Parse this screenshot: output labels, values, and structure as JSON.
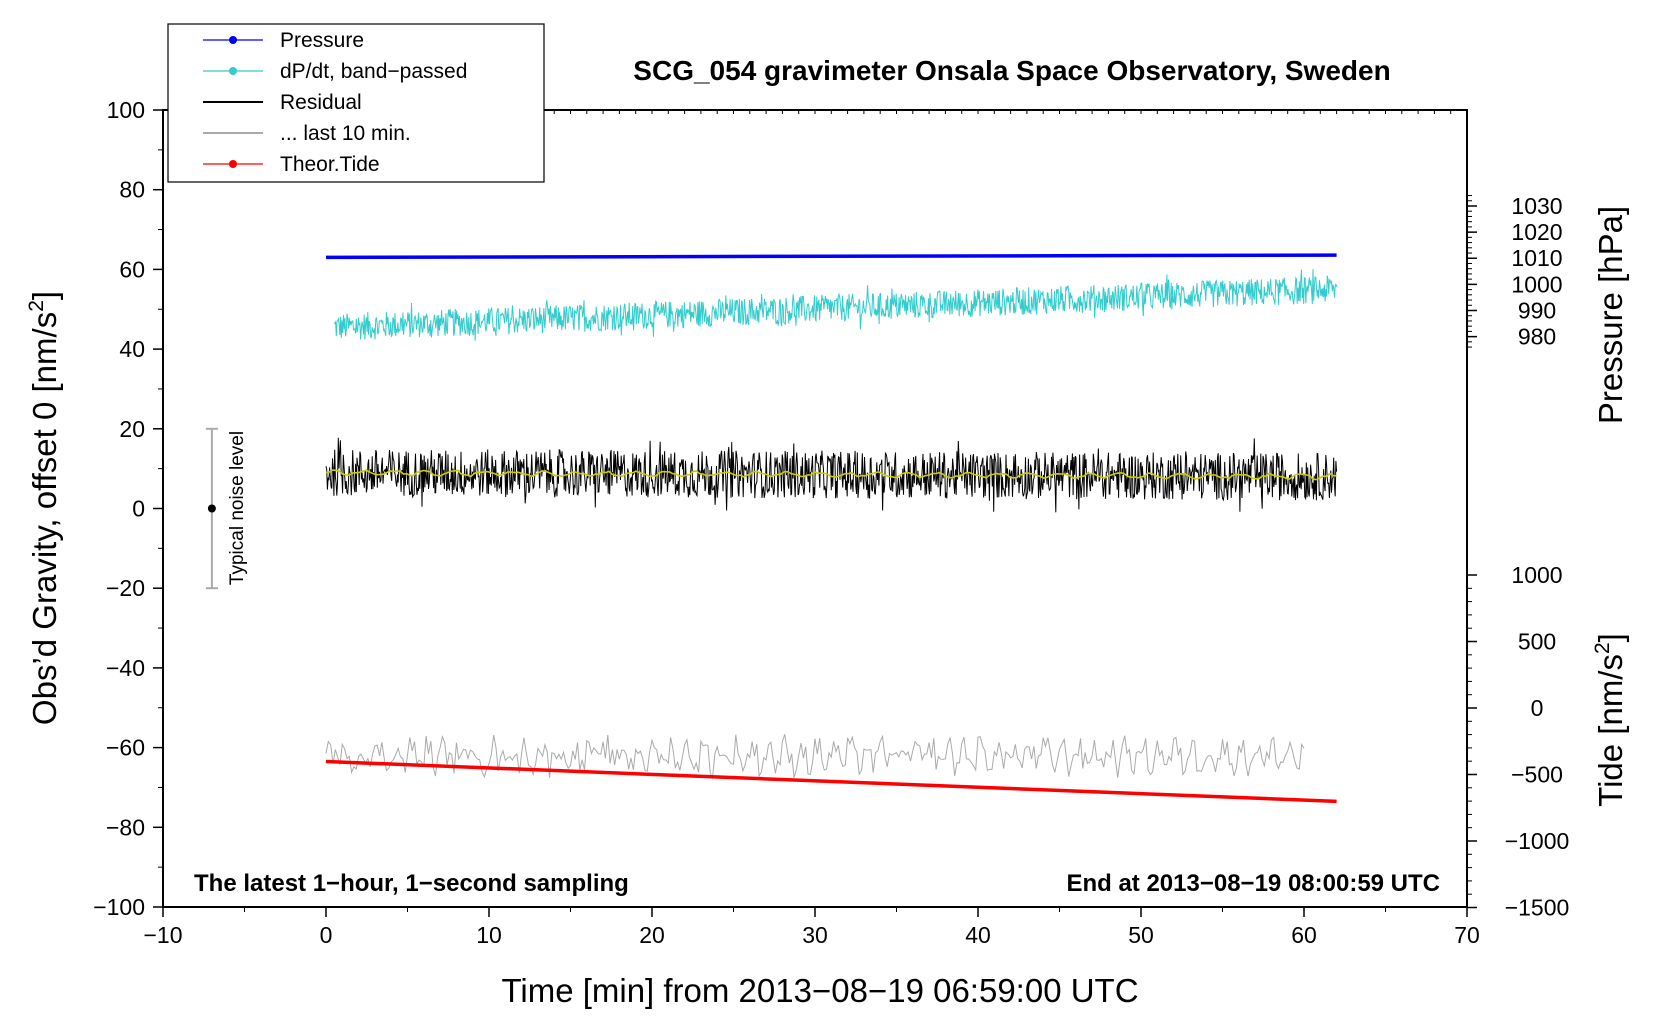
{
  "chart_data": {
    "type": "line",
    "title": "SCG_054 gravimeter Onsala Space Observatory, Sweden",
    "xlabel": "Time [min] from 2013−08−19 06:59:00 UTC",
    "ylabel_left": "Obs’d Gravity, offset 0 [nm/s",
    "ylabel_left_sup": "2",
    "ylabel_left_end": "]",
    "ylabel_right_pressure": "Pressure [hPa]",
    "ylabel_right_tide": "Tide [nm/s",
    "ylabel_right_tide_sup": "2",
    "ylabel_right_tide_end": "]",
    "xlim": [
      -10,
      70
    ],
    "ylim": [
      -100,
      100
    ],
    "x_ticks": [
      "−10",
      "0",
      "10",
      "20",
      "30",
      "40",
      "50",
      "60",
      "70"
    ],
    "y_ticks": [
      "−100",
      "−80",
      "−60",
      "−40",
      "−20",
      "0",
      "20",
      "40",
      "60",
      "80",
      "100"
    ],
    "pressure_axis": {
      "range": [
        975,
        1035
      ],
      "ticks": [
        "980",
        "990",
        "1000",
        "1010",
        "1020",
        "1030"
      ]
    },
    "tide_axis": {
      "range": [
        -1500,
        1500
      ],
      "ticks": [
        "−1500",
        "−1000",
        "−500",
        "0",
        "500",
        "1000"
      ]
    },
    "legend": [
      {
        "label": "Pressure",
        "color": "#0000ff",
        "marker": true
      },
      {
        "label": "dP/dt, band−passed",
        "color": "#33cccc",
        "marker": true
      },
      {
        "label": "Residual",
        "color": "#000000",
        "marker": false
      },
      {
        "label": "... last 10 min.",
        "color": "#aaaaaa",
        "marker": false
      },
      {
        "label": "Theor.Tide",
        "color": "#ff0000",
        "marker": true
      }
    ],
    "series": [
      {
        "name": "Pressure",
        "color": "#0000ff",
        "x": [
          0,
          62
        ],
        "y": [
          63.0,
          63.6
        ],
        "note": "nearly flat, ~1011 hPa"
      },
      {
        "name": "dP/dt, band-passed",
        "color": "#33cccc",
        "x": [
          0.5,
          62
        ],
        "y": [
          45.5,
          55.0
        ],
        "noise_amplitude": 3.5
      },
      {
        "name": "Residual",
        "color": "#000000",
        "x": [
          0,
          62
        ],
        "y": [
          9.0,
          8.0
        ],
        "noise_amplitude": 6
      },
      {
        "name": "Residual smoothed",
        "color": "#cccc00",
        "x": [
          0,
          62
        ],
        "y": [
          9.0,
          8.0
        ]
      },
      {
        "name": "... last 10 min.",
        "color": "#aaaaaa",
        "x": [
          0,
          60
        ],
        "y": [
          -62,
          -62
        ],
        "noise_amplitude": 5
      },
      {
        "name": "Theor.Tide",
        "color": "#ff0000",
        "x": [
          0,
          62
        ],
        "y": [
          -63.5,
          -73.5
        ]
      }
    ],
    "noise_bar": {
      "label": "Typical noise level",
      "x": -7,
      "center": 0,
      "low": -20,
      "high": 20
    },
    "annotations": {
      "bottom_left": "The latest 1−hour, 1−second sampling",
      "bottom_right": "End at 2013−08−19 08:00:59 UTC"
    },
    "grid": false
  }
}
